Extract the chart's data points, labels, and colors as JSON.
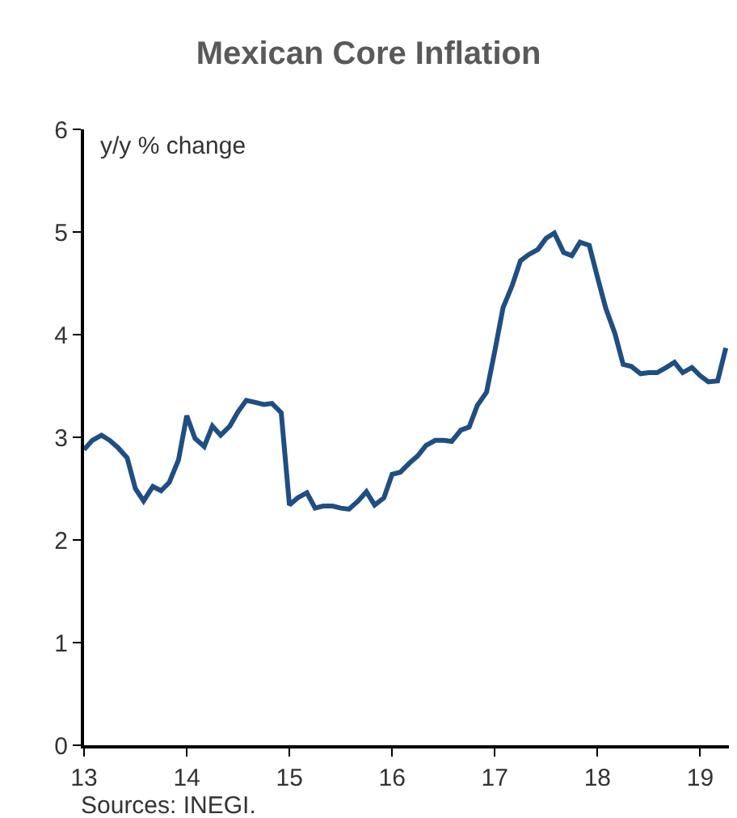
{
  "chart_data": {
    "type": "line",
    "title": "Mexican Core Inflation",
    "ylabel": "y/y % change",
    "x": [
      13,
      13.08,
      13.17,
      13.25,
      13.33,
      13.42,
      13.5,
      13.58,
      13.67,
      13.75,
      13.83,
      13.92,
      14,
      14.08,
      14.17,
      14.25,
      14.33,
      14.42,
      14.5,
      14.58,
      14.67,
      14.75,
      14.83,
      14.92,
      15,
      15.08,
      15.17,
      15.25,
      15.33,
      15.42,
      15.5,
      15.58,
      15.67,
      15.75,
      15.83,
      15.92,
      16,
      16.08,
      16.17,
      16.25,
      16.33,
      16.42,
      16.5,
      16.58,
      16.67,
      16.75,
      16.83,
      16.92,
      17,
      17.08,
      17.17,
      17.25,
      17.33,
      17.42,
      17.5,
      17.58,
      17.67,
      17.75,
      17.83,
      17.92,
      18,
      18.08,
      18.17,
      18.25,
      18.33,
      18.42,
      18.5,
      18.58,
      18.67,
      18.75,
      18.83,
      18.92,
      19,
      19.08,
      19.17,
      19.25
    ],
    "series": [
      {
        "color": "#1f4e82",
        "values": [
          2.88,
          2.97,
          3.02,
          2.97,
          2.9,
          2.8,
          2.5,
          2.38,
          2.52,
          2.48,
          2.56,
          2.78,
          3.21,
          2.99,
          2.91,
          3.11,
          3.02,
          3.11,
          3.25,
          3.36,
          3.34,
          3.32,
          3.33,
          3.24,
          2.34,
          2.41,
          2.46,
          2.31,
          2.33,
          2.33,
          2.31,
          2.3,
          2.38,
          2.47,
          2.34,
          2.41,
          2.64,
          2.66,
          2.75,
          2.82,
          2.92,
          2.97,
          2.97,
          2.96,
          3.07,
          3.1,
          3.31,
          3.44,
          3.84,
          4.26,
          4.48,
          4.72,
          4.78,
          4.83,
          4.94,
          4.99,
          4.8,
          4.77,
          4.9,
          4.87,
          4.56,
          4.26,
          4.01,
          3.71,
          3.69,
          3.62,
          3.63,
          3.63,
          3.68,
          3.73,
          3.63,
          3.68,
          3.6,
          3.54,
          3.55,
          3.87
        ]
      }
    ],
    "xlim": [
      13,
      19.28
    ],
    "xticks": [
      13,
      14,
      15,
      16,
      17,
      18,
      19
    ],
    "ylim": [
      0,
      6
    ],
    "yticks": [
      0,
      1,
      2,
      3,
      4,
      5,
      6
    ],
    "grid": false,
    "marker": "none",
    "line_style": "solid",
    "annotations": [
      "Sources: INEGI."
    ]
  }
}
